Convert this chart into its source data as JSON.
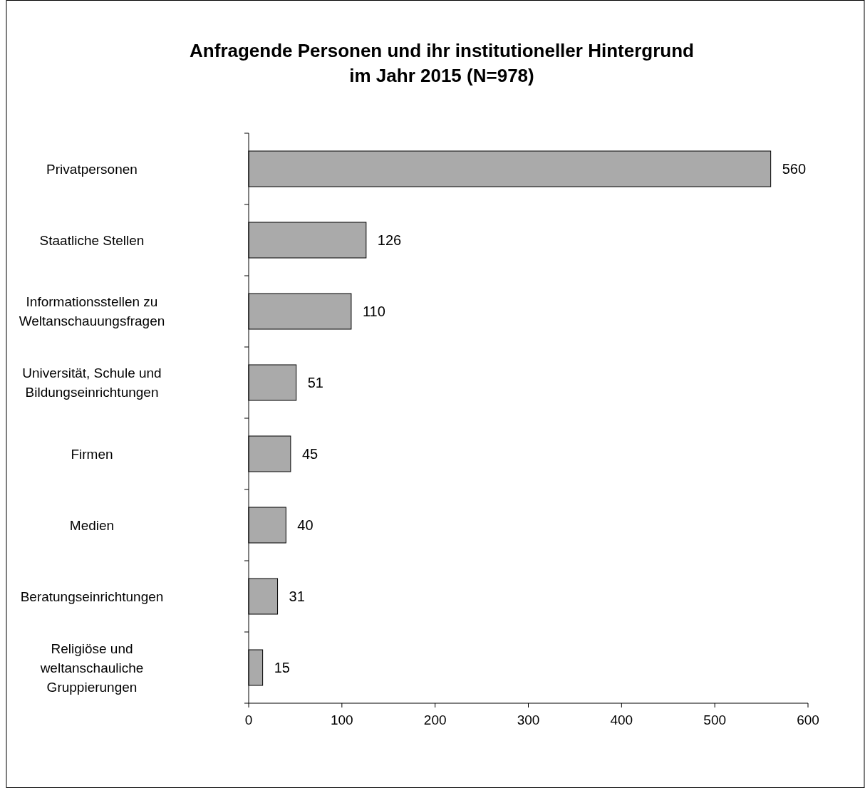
{
  "chart_data": {
    "type": "bar",
    "orientation": "horizontal",
    "title": "Anfragende Personen und ihr institutioneller Hintergrund\nim Jahr 2015 (N=978)",
    "categories": [
      "Privatpersonen",
      "Staatliche Stellen",
      "Informationsstellen zu\nWeltanschauungsfragen",
      "Universität, Schule und\nBildungseinrichtungen",
      "Firmen",
      "Medien",
      "Beratungseinrichtungen",
      "Religiöse und\nweltanschauliche\nGruppierungen"
    ],
    "values": [
      560,
      126,
      110,
      51,
      45,
      40,
      31,
      15
    ],
    "color": "#aaaaaa",
    "xlim": [
      0,
      600
    ],
    "xticks": [
      0,
      100,
      200,
      300,
      400,
      500,
      600
    ],
    "data_labels": true
  }
}
